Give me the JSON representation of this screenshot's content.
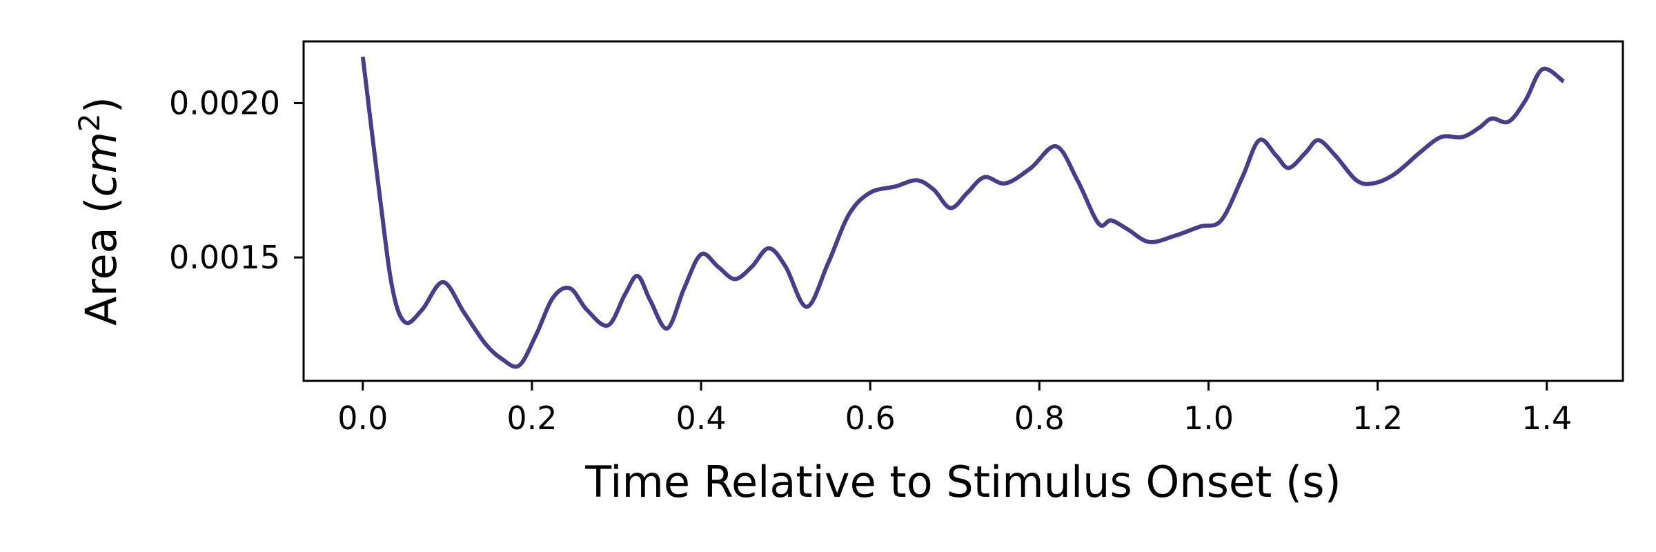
{
  "chart_data": {
    "type": "line",
    "title": "",
    "xlabel": "Time Relative to Stimulus Onset (s)",
    "ylabel": {
      "prefix": "Area (",
      "var": "cm",
      "sup": "2",
      "suffix": ")"
    },
    "xlim": [
      -0.07,
      1.49
    ],
    "ylim": [
      0.0011,
      0.0022
    ],
    "xticks": [
      {
        "value": 0.0,
        "label": "0.0"
      },
      {
        "value": 0.2,
        "label": "0.2"
      },
      {
        "value": 0.4,
        "label": "0.4"
      },
      {
        "value": 0.6,
        "label": "0.6"
      },
      {
        "value": 0.8,
        "label": "0.8"
      },
      {
        "value": 1.0,
        "label": "1.0"
      },
      {
        "value": 1.2,
        "label": "1.2"
      },
      {
        "value": 1.4,
        "label": "1.4"
      }
    ],
    "yticks": [
      {
        "value": 0.0015,
        "label": "0.0015"
      },
      {
        "value": 0.002,
        "label": "0.0020"
      }
    ],
    "grid": false,
    "colors": {
      "line": "#483d8b"
    },
    "series": [
      {
        "x": [
          0.0,
          0.02,
          0.035,
          0.05,
          0.07,
          0.095,
          0.12,
          0.145,
          0.165,
          0.185,
          0.205,
          0.225,
          0.245,
          0.265,
          0.29,
          0.31,
          0.325,
          0.34,
          0.36,
          0.38,
          0.4,
          0.42,
          0.44,
          0.46,
          0.48,
          0.5,
          0.525,
          0.55,
          0.575,
          0.6,
          0.63,
          0.655,
          0.675,
          0.695,
          0.715,
          0.735,
          0.76,
          0.79,
          0.82,
          0.845,
          0.87,
          0.885,
          0.905,
          0.93,
          0.96,
          0.99,
          1.015,
          1.04,
          1.06,
          1.08,
          1.095,
          1.115,
          1.13,
          1.15,
          1.175,
          1.195,
          1.22,
          1.25,
          1.275,
          1.3,
          1.32,
          1.335,
          1.355,
          1.375,
          1.395,
          1.42
        ],
        "y": [
          0.00215,
          0.0017,
          0.0014,
          0.00129,
          0.00133,
          0.00142,
          0.00132,
          0.00122,
          0.00117,
          0.00115,
          0.00125,
          0.00137,
          0.0014,
          0.00133,
          0.00128,
          0.00138,
          0.00144,
          0.00136,
          0.00127,
          0.0014,
          0.00151,
          0.00147,
          0.00143,
          0.00147,
          0.00153,
          0.00147,
          0.00134,
          0.00148,
          0.00164,
          0.00171,
          0.00173,
          0.00175,
          0.00172,
          0.00166,
          0.00171,
          0.00176,
          0.00174,
          0.00179,
          0.00186,
          0.00175,
          0.00161,
          0.00162,
          0.00159,
          0.00155,
          0.00157,
          0.0016,
          0.00162,
          0.00176,
          0.00188,
          0.00183,
          0.00179,
          0.00184,
          0.00188,
          0.00183,
          0.00175,
          0.00174,
          0.00177,
          0.00184,
          0.00189,
          0.00189,
          0.00192,
          0.00195,
          0.00194,
          0.00201,
          0.00211,
          0.00207
        ]
      }
    ]
  }
}
